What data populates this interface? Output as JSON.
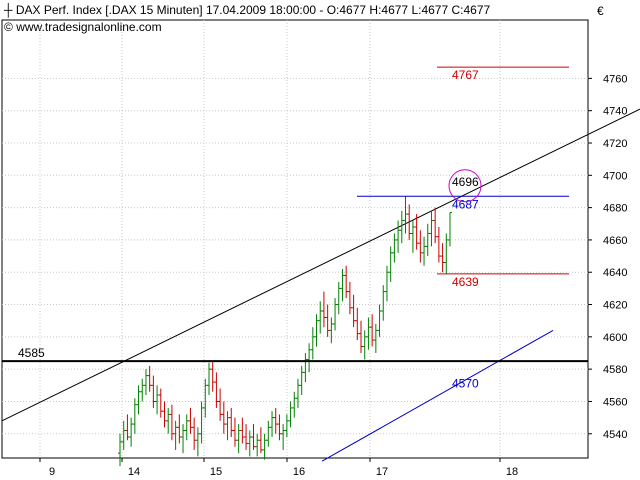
{
  "header": {
    "line1": "DAX Perf. Index [.DAX  15 Minuten] 17.04.2009 18:00:00 - O:4677 H:4677 L:4677 C:4677",
    "line2": "www.tradesignalonline.com",
    "currency": "€"
  },
  "chart_data": {
    "type": "candlestick",
    "title": "DAX Perf. Index [.DAX  15 Minuten]",
    "timeframe": "15 Minuten",
    "last_bar": {
      "datetime": "17.04.2009 18:00:00",
      "open": 4677,
      "high": 4677,
      "low": 4677,
      "close": 4677
    },
    "ylim": [
      4525,
      4785
    ],
    "y_ticks": [
      4540,
      4560,
      4580,
      4600,
      4620,
      4640,
      4660,
      4680,
      4700,
      4720,
      4740,
      4760
    ],
    "x_labels": [
      "9",
      "14",
      "15",
      "16",
      "17",
      "18"
    ],
    "grid": true,
    "colors": {
      "up": "#008000",
      "down": "#cc0000",
      "support": "#000000",
      "channel": "#0000cc",
      "marker": "#cc00cc"
    },
    "candles": [
      [
        4528,
        4540,
        4520,
        4535
      ],
      [
        4535,
        4548,
        4530,
        4542
      ],
      [
        4542,
        4552,
        4536,
        4538
      ],
      [
        4538,
        4550,
        4532,
        4546
      ],
      [
        4546,
        4562,
        4540,
        4558
      ],
      [
        4558,
        4570,
        4552,
        4566
      ],
      [
        4566,
        4574,
        4560,
        4570
      ],
      [
        4570,
        4580,
        4564,
        4576
      ],
      [
        4576,
        4582,
        4566,
        4570
      ],
      [
        4570,
        4576,
        4556,
        4560
      ],
      [
        4560,
        4570,
        4552,
        4564
      ],
      [
        4564,
        4568,
        4550,
        4554
      ],
      [
        4554,
        4560,
        4544,
        4548
      ],
      [
        4548,
        4556,
        4540,
        4552
      ],
      [
        4552,
        4558,
        4536,
        4540
      ],
      [
        4540,
        4548,
        4530,
        4544
      ],
      [
        4544,
        4552,
        4534,
        4538
      ],
      [
        4538,
        4546,
        4528,
        4542
      ],
      [
        4542,
        4552,
        4536,
        4548
      ],
      [
        4548,
        4556,
        4540,
        4544
      ],
      [
        4544,
        4550,
        4530,
        4536
      ],
      [
        4536,
        4544,
        4526,
        4540
      ],
      [
        4540,
        4560,
        4534,
        4556
      ],
      [
        4556,
        4574,
        4550,
        4570
      ],
      [
        4570,
        4584,
        4564,
        4580
      ],
      [
        4580,
        4585,
        4566,
        4572
      ],
      [
        4572,
        4578,
        4556,
        4560
      ],
      [
        4560,
        4568,
        4548,
        4552
      ],
      [
        4552,
        4560,
        4540,
        4546
      ],
      [
        4546,
        4554,
        4536,
        4550
      ],
      [
        4550,
        4556,
        4538,
        4542
      ],
      [
        4542,
        4550,
        4532,
        4536
      ],
      [
        4536,
        4546,
        4528,
        4542
      ],
      [
        4542,
        4550,
        4534,
        4538
      ],
      [
        4538,
        4546,
        4530,
        4534
      ],
      [
        4534,
        4542,
        4526,
        4538
      ],
      [
        4538,
        4546,
        4530,
        4532
      ],
      [
        4532,
        4540,
        4526,
        4536
      ],
      [
        4536,
        4544,
        4528,
        4530
      ],
      [
        4530,
        4540,
        4524,
        4536
      ],
      [
        4536,
        4548,
        4532,
        4544
      ],
      [
        4544,
        4554,
        4538,
        4550
      ],
      [
        4550,
        4556,
        4540,
        4546
      ],
      [
        4546,
        4552,
        4536,
        4540
      ],
      [
        4540,
        4546,
        4530,
        4542
      ],
      [
        4542,
        4552,
        4538,
        4548
      ],
      [
        4548,
        4560,
        4544,
        4556
      ],
      [
        4556,
        4566,
        4550,
        4562
      ],
      [
        4562,
        4574,
        4556,
        4570
      ],
      [
        4570,
        4582,
        4564,
        4578
      ],
      [
        4578,
        4590,
        4572,
        4586
      ],
      [
        4586,
        4596,
        4578,
        4592
      ],
      [
        4592,
        4606,
        4586,
        4600
      ],
      [
        4600,
        4614,
        4594,
        4610
      ],
      [
        4610,
        4622,
        4602,
        4616
      ],
      [
        4616,
        4628,
        4606,
        4612
      ],
      [
        4612,
        4620,
        4600,
        4604
      ],
      [
        4604,
        4612,
        4596,
        4608
      ],
      [
        4608,
        4624,
        4604,
        4620
      ],
      [
        4620,
        4634,
        4614,
        4630
      ],
      [
        4630,
        4642,
        4622,
        4638
      ],
      [
        4638,
        4644,
        4624,
        4628
      ],
      [
        4628,
        4634,
        4614,
        4618
      ],
      [
        4618,
        4626,
        4606,
        4610
      ],
      [
        4610,
        4618,
        4598,
        4602
      ],
      [
        4602,
        4610,
        4590,
        4594
      ],
      [
        4594,
        4604,
        4586,
        4600
      ],
      [
        4600,
        4612,
        4592,
        4606
      ],
      [
        4606,
        4614,
        4594,
        4598
      ],
      [
        4598,
        4608,
        4590,
        4604
      ],
      [
        4604,
        4620,
        4600,
        4616
      ],
      [
        4616,
        4632,
        4610,
        4628
      ],
      [
        4628,
        4644,
        4622,
        4640
      ],
      [
        4640,
        4656,
        4634,
        4652
      ],
      [
        4652,
        4664,
        4646,
        4660
      ],
      [
        4660,
        4672,
        4652,
        4666
      ],
      [
        4666,
        4678,
        4658,
        4672
      ],
      [
        4672,
        4687,
        4664,
        4676
      ],
      [
        4676,
        4682,
        4660,
        4664
      ],
      [
        4664,
        4672,
        4652,
        4668
      ],
      [
        4668,
        4676,
        4654,
        4658
      ],
      [
        4658,
        4666,
        4646,
        4652
      ],
      [
        4652,
        4662,
        4644,
        4656
      ],
      [
        4656,
        4670,
        4650,
        4664
      ],
      [
        4664,
        4678,
        4656,
        4672
      ],
      [
        4672,
        4680,
        4658,
        4662
      ],
      [
        4662,
        4668,
        4646,
        4650
      ],
      [
        4650,
        4658,
        4640,
        4646
      ],
      [
        4646,
        4664,
        4639,
        4660
      ],
      [
        4660,
        4677,
        4656,
        4677
      ]
    ],
    "lines": [
      {
        "name": "resistance-line",
        "label": "4767",
        "value": 4767
      },
      {
        "name": "high-line",
        "label": "4687",
        "value": 4687
      },
      {
        "name": "low-line",
        "label": "4639",
        "value": 4639
      },
      {
        "name": "support-line",
        "label": "4585",
        "value": 4585
      }
    ],
    "trendlines": [
      {
        "name": "upper-trendline",
        "y_start": 4548,
        "y_end": 4741
      },
      {
        "name": "lower-channel-line",
        "label": "4570",
        "y_start": 4523,
        "y_end": 4604
      }
    ],
    "marker": {
      "label": "4696",
      "value": 4696
    }
  }
}
